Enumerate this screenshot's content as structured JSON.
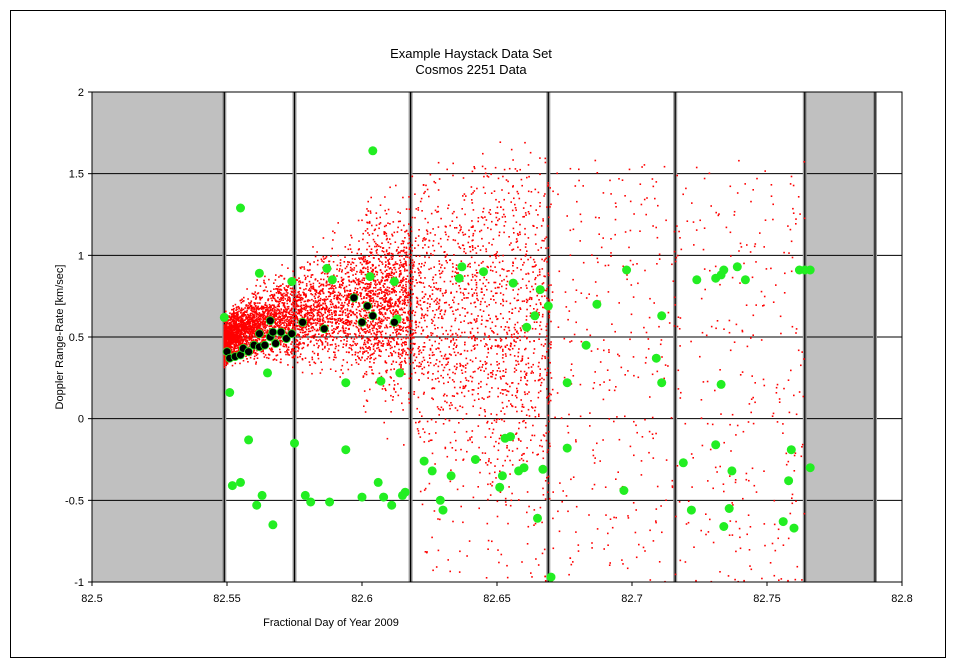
{
  "chart_data": {
    "type": "scatter",
    "title": "Example Haystack Data Set",
    "subtitle": "Cosmos 2251 Data",
    "xlabel": "Fractional Day of Year 2009",
    "ylabel": "Doppler Range-Rate [km/sec]",
    "xlim": [
      82.5,
      82.8
    ],
    "ylim": [
      -1,
      2
    ],
    "x_ticks": [
      "82.5",
      "82.55",
      "82.6",
      "82.65",
      "82.7",
      "82.75",
      "82.8"
    ],
    "y_ticks": [
      "-1",
      "-0.5",
      "0",
      "0.5",
      "1",
      "1.5",
      "2"
    ],
    "grid": true,
    "shaded_regions": [
      [
        82.5,
        82.549
      ],
      [
        82.764,
        82.79
      ]
    ],
    "vertical_lines": [
      82.549,
      82.575,
      82.618,
      82.669,
      82.716,
      82.764,
      82.79
    ],
    "series": [
      {
        "color": "#ff0000",
        "marker": "dot",
        "density_model": "dense debris cloud: x 82.548-82.764, y roughly -1 to 1.65, densest near x 82.55-82.62, y 0.3-0.9"
      },
      {
        "color": "#22ee22",
        "marker": "circle",
        "points": [
          [
            82.549,
            0.62
          ],
          [
            82.551,
            0.16
          ],
          [
            82.555,
            1.29
          ],
          [
            82.562,
            0.89
          ],
          [
            82.565,
            0.28
          ],
          [
            82.574,
            0.84
          ],
          [
            82.587,
            0.92
          ],
          [
            82.589,
            0.85
          ],
          [
            82.594,
            0.22
          ],
          [
            82.604,
            1.64
          ],
          [
            82.603,
            0.87
          ],
          [
            82.607,
            0.23
          ],
          [
            82.612,
            0.84
          ],
          [
            82.613,
            0.61
          ],
          [
            82.614,
            0.28
          ],
          [
            82.636,
            0.86
          ],
          [
            82.637,
            0.93
          ],
          [
            82.645,
            0.9
          ],
          [
            82.656,
            0.83
          ],
          [
            82.661,
            0.56
          ],
          [
            82.664,
            0.63
          ],
          [
            82.666,
            0.79
          ],
          [
            82.669,
            0.69
          ],
          [
            82.676,
            0.22
          ],
          [
            82.683,
            0.45
          ],
          [
            82.687,
            0.7
          ],
          [
            82.698,
            0.91
          ],
          [
            82.709,
            0.37
          ],
          [
            82.711,
            0.63
          ],
          [
            82.711,
            0.22
          ],
          [
            82.719,
            -0.27
          ],
          [
            82.724,
            0.85
          ],
          [
            82.731,
            0.86
          ],
          [
            82.733,
            0.88
          ],
          [
            82.733,
            0.21
          ],
          [
            82.734,
            0.91
          ],
          [
            82.739,
            0.93
          ],
          [
            82.742,
            0.85
          ],
          [
            82.762,
            0.91
          ],
          [
            82.764,
            0.91
          ],
          [
            82.766,
            0.91
          ],
          [
            82.766,
            -0.3
          ],
          [
            82.759,
            -0.19
          ],
          [
            82.758,
            -0.38
          ],
          [
            82.756,
            -0.63
          ],
          [
            82.76,
            -0.67
          ],
          [
            82.731,
            -0.16
          ],
          [
            82.737,
            -0.32
          ],
          [
            82.736,
            -0.55
          ],
          [
            82.734,
            -0.66
          ],
          [
            82.722,
            -0.56
          ],
          [
            82.697,
            -0.44
          ],
          [
            82.676,
            -0.18
          ],
          [
            82.67,
            -0.97
          ],
          [
            82.667,
            -0.31
          ],
          [
            82.665,
            -0.61
          ],
          [
            82.66,
            -0.3
          ],
          [
            82.658,
            -0.32
          ],
          [
            82.655,
            -0.11
          ],
          [
            82.653,
            -0.12
          ],
          [
            82.652,
            -0.35
          ],
          [
            82.651,
            -0.42
          ],
          [
            82.642,
            -0.25
          ],
          [
            82.633,
            -0.35
          ],
          [
            82.63,
            -0.56
          ],
          [
            82.629,
            -0.5
          ],
          [
            82.626,
            -0.32
          ],
          [
            82.623,
            -0.26
          ],
          [
            82.616,
            -0.45
          ],
          [
            82.615,
            -0.47
          ],
          [
            82.611,
            -0.53
          ],
          [
            82.608,
            -0.48
          ],
          [
            82.606,
            -0.39
          ],
          [
            82.6,
            -0.48
          ],
          [
            82.594,
            -0.19
          ],
          [
            82.588,
            -0.51
          ],
          [
            82.581,
            -0.51
          ],
          [
            82.579,
            -0.47
          ],
          [
            82.575,
            -0.15
          ],
          [
            82.567,
            -0.65
          ],
          [
            82.563,
            -0.47
          ],
          [
            82.561,
            -0.53
          ],
          [
            82.558,
            -0.13
          ],
          [
            82.555,
            -0.39
          ],
          [
            82.552,
            -0.41
          ]
        ]
      },
      {
        "color": "#000000",
        "marker": "circle",
        "points": [
          [
            82.55,
            0.41
          ],
          [
            82.551,
            0.37
          ],
          [
            82.553,
            0.38
          ],
          [
            82.555,
            0.39
          ],
          [
            82.556,
            0.43
          ],
          [
            82.558,
            0.41
          ],
          [
            82.56,
            0.45
          ],
          [
            82.562,
            0.44
          ],
          [
            82.562,
            0.52
          ],
          [
            82.564,
            0.45
          ],
          [
            82.566,
            0.5
          ],
          [
            82.566,
            0.6
          ],
          [
            82.567,
            0.53
          ],
          [
            82.568,
            0.46
          ],
          [
            82.57,
            0.53
          ],
          [
            82.572,
            0.49
          ],
          [
            82.574,
            0.52
          ],
          [
            82.578,
            0.59
          ],
          [
            82.586,
            0.55
          ],
          [
            82.597,
            0.74
          ],
          [
            82.6,
            0.59
          ],
          [
            82.602,
            0.69
          ],
          [
            82.604,
            0.63
          ],
          [
            82.612,
            0.59
          ]
        ]
      }
    ]
  }
}
